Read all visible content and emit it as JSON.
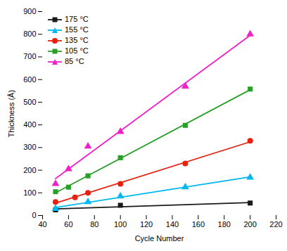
{
  "chart_data": {
    "type": "scatter",
    "xlabel": "Cycle Number",
    "ylabel": "Thickness (Å)",
    "xlim": [
      40,
      220
    ],
    "ylim": [
      0,
      900
    ],
    "xticks": [
      40,
      60,
      80,
      100,
      120,
      140,
      160,
      180,
      200,
      220
    ],
    "yticks": [
      0,
      100,
      200,
      300,
      400,
      500,
      600,
      700,
      800,
      900
    ],
    "legend": "upper left",
    "series": [
      {
        "name": "175 °C",
        "color": "#1a1a1a",
        "marker": "square",
        "line_style": "solid",
        "x": [
          50,
          100,
          200
        ],
        "values": [
          25,
          45,
          55
        ]
      },
      {
        "name": "155 °C",
        "color": "#00b8f0",
        "marker": "triangle",
        "line_style": "solid",
        "x": [
          50,
          75,
          100,
          150,
          200
        ],
        "values": [
          30,
          60,
          85,
          125,
          168
        ]
      },
      {
        "name": "135 °C",
        "color": "#e82010",
        "marker": "circle",
        "line_style": "solid",
        "x": [
          50,
          65,
          75,
          100,
          150,
          200
        ],
        "values": [
          60,
          80,
          100,
          140,
          230,
          330
        ]
      },
      {
        "name": "105 °C",
        "color": "#28a028",
        "marker": "square",
        "line_style": "solid",
        "x": [
          50,
          60,
          75,
          100,
          150,
          200
        ],
        "values": [
          105,
          125,
          175,
          255,
          398,
          558
        ]
      },
      {
        "name": "85 °C",
        "color": "#f020c8",
        "marker": "triangle",
        "line_style": "solid",
        "x": [
          50,
          60,
          75,
          100,
          150,
          200
        ],
        "values": [
          140,
          205,
          305,
          370,
          570,
          800
        ]
      }
    ]
  }
}
